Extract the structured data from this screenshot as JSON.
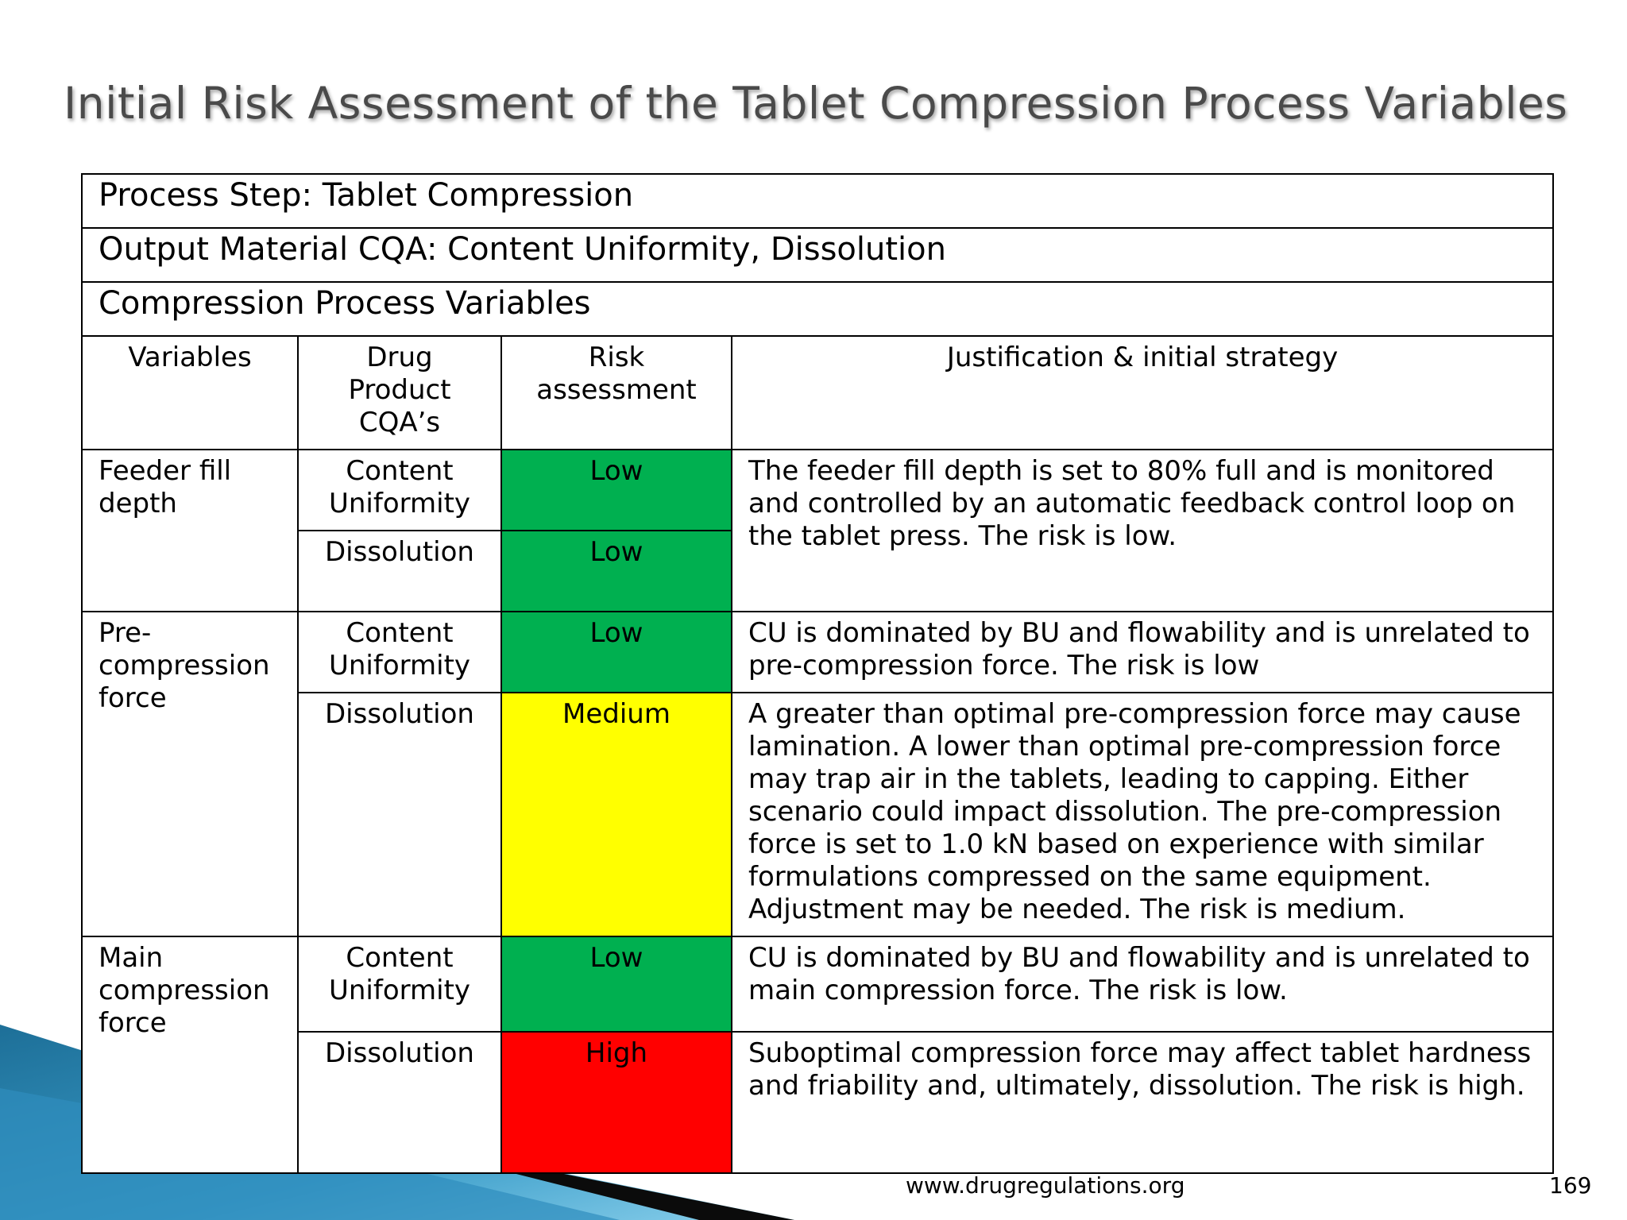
{
  "title": "Initial Risk Assessment of the Tablet Compression Process Variables",
  "table": {
    "process_step": "Process Step: Tablet Compression",
    "output_cqa": "Output Material CQA: Content Uniformity, Dissolution",
    "section": "Compression Process Variables",
    "headers": [
      "Variables",
      "Drug Product CQA’s",
      "Risk assessment",
      "Justification & initial strategy"
    ],
    "groups": [
      {
        "variable": "Feeder fill depth",
        "rows": [
          {
            "cqa": "Content Uniformity",
            "risk": "Low",
            "level": "low"
          },
          {
            "cqa": "Dissolution",
            "risk": "Low",
            "level": "low"
          }
        ],
        "justification": "The feeder fill depth is set to 80% full and is monitored and controlled by an automatic feedback control loop on the tablet press. The risk is low."
      },
      {
        "variable": "Pre-compression force",
        "rows": [
          {
            "cqa": "Content Uniformity",
            "risk": "Low",
            "level": "low",
            "justification": "CU is dominated by BU and flowability and is unrelated to pre-compression force. The risk is low"
          },
          {
            "cqa": "Dissolution",
            "risk": "Medium",
            "level": "medium",
            "justification": "A greater than optimal pre-compression force may cause lamination. A lower than optimal pre-compression force may trap air in the tablets, leading to capping. Either scenario could impact dissolution. The pre-compression force is set to 1.0 kN based on experience with similar formulations compressed on the same equipment. Adjustment may be needed. The risk is medium."
          }
        ]
      },
      {
        "variable": "Main compression force",
        "rows": [
          {
            "cqa": "Content Uniformity",
            "risk": "Low",
            "level": "low",
            "justification": "CU is dominated by BU and flowability and is unrelated to main compression force. The risk is low."
          },
          {
            "cqa": "Dissolution",
            "risk": "High",
            "level": "high",
            "justification": "Suboptimal compression force may affect tablet hardness and friability and, ultimately, dissolution. The risk is high."
          }
        ]
      }
    ]
  },
  "footer": {
    "url": "www.drugregulations.org",
    "page": "169"
  }
}
